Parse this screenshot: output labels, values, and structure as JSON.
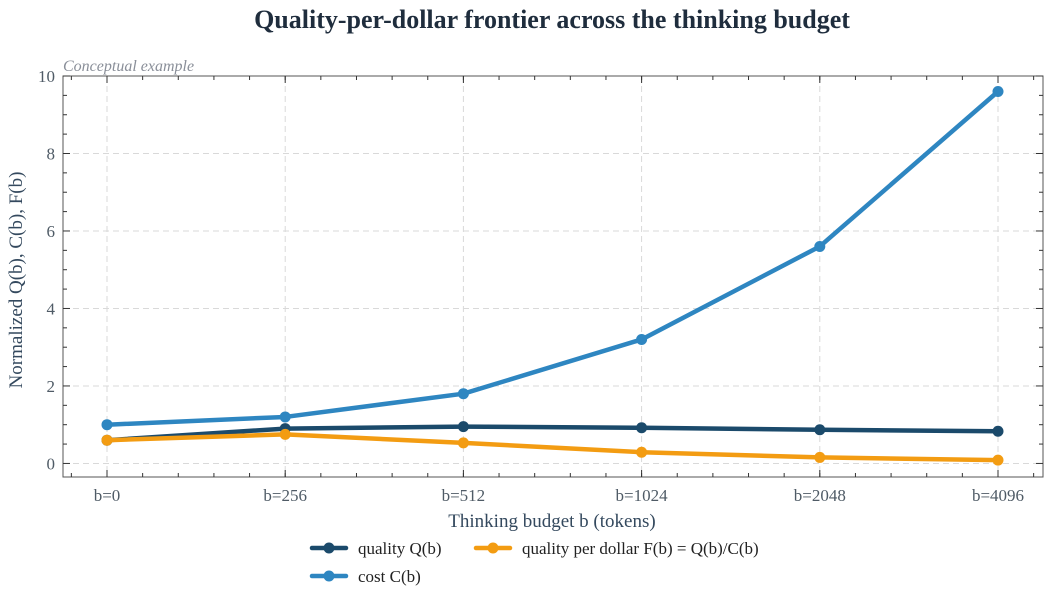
{
  "chart_data": {
    "type": "line",
    "title": "Quality-per-dollar frontier across the thinking budget",
    "subtitle": "Conceptual example",
    "xlabel": "Thinking budget b (tokens)",
    "ylabel": "Normalized Q(b), C(b), F(b)",
    "categories": [
      "b=0",
      "b=256",
      "b=512",
      "b=1024",
      "b=2048",
      "b=4096"
    ],
    "ylim": [
      -0.35,
      10
    ],
    "yticks": [
      0,
      2,
      4,
      6,
      8,
      10
    ],
    "grid": true,
    "legend_position": "bottom",
    "series": [
      {
        "name": "quality Q(b)",
        "color": "#1b4a6b",
        "values": [
          0.6,
          0.9,
          0.95,
          0.92,
          0.87,
          0.83
        ]
      },
      {
        "name": "cost C(b)",
        "color": "#2e86c1",
        "values": [
          1.0,
          1.2,
          1.8,
          3.2,
          5.6,
          9.6
        ]
      },
      {
        "name": "quality per dollar F(b) = Q(b)/C(b)",
        "color": "#f39c12",
        "values": [
          0.6,
          0.75,
          0.53,
          0.29,
          0.155,
          0.086
        ]
      }
    ]
  }
}
